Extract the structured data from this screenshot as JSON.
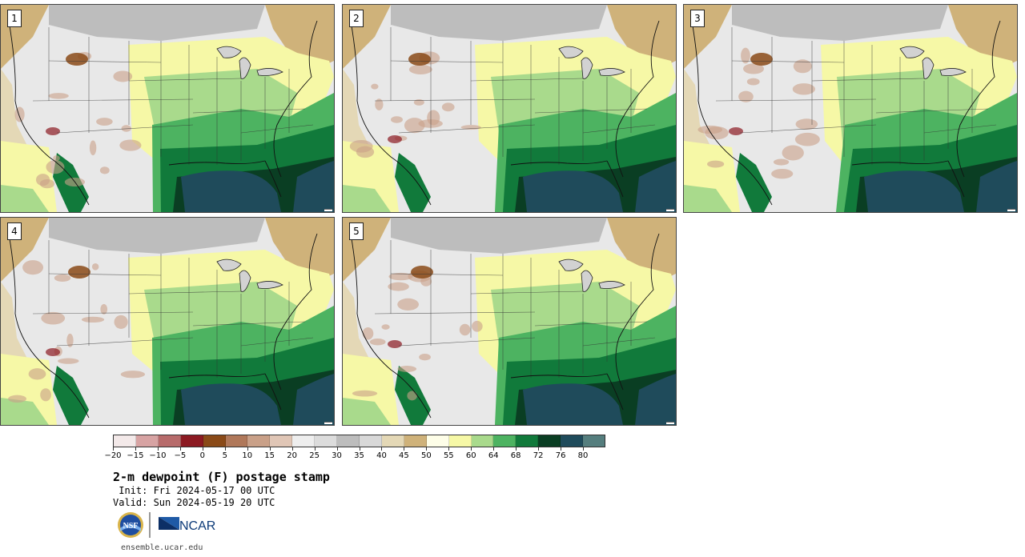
{
  "panels": [
    {
      "label": "1",
      "variant": 0
    },
    {
      "label": "2",
      "variant": 1
    },
    {
      "label": "3",
      "variant": 2
    },
    {
      "label": "4",
      "variant": 3
    },
    {
      "label": "5",
      "variant": 4
    }
  ],
  "colorbar": {
    "colors": [
      "#f3e9e9",
      "#d7a3a3",
      "#b76b6b",
      "#8c1a22",
      "#8a4a18",
      "#b0785a",
      "#c9a088",
      "#e0c6b6",
      "#eeeeee",
      "#dcdcdc",
      "#bdbdbd",
      "#d8d8d8",
      "#e4d8b6",
      "#cfb27a",
      "#fefee8",
      "#f6f8a6",
      "#a9da8c",
      "#4db361",
      "#117a3b",
      "#0a3e23",
      "#1f4b5b",
      "#557e7e"
    ],
    "tick_labels": [
      "−20",
      "−15",
      "−10",
      "−5",
      "0",
      "5",
      "10",
      "15",
      "20",
      "25",
      "30",
      "35",
      "40",
      "45",
      "50",
      "55",
      "60",
      "64",
      "68",
      "72",
      "76",
      "80"
    ]
  },
  "title": "2-m dewpoint (F) postage stamp",
  "init": " Init: Fri 2024-05-17 00 UTC",
  "valid": "Valid: Sun 2024-05-19 20 UTC",
  "logos": {
    "nsf": "NSF",
    "ncar": "NCAR"
  },
  "url": "ensemble.ucar.edu"
}
